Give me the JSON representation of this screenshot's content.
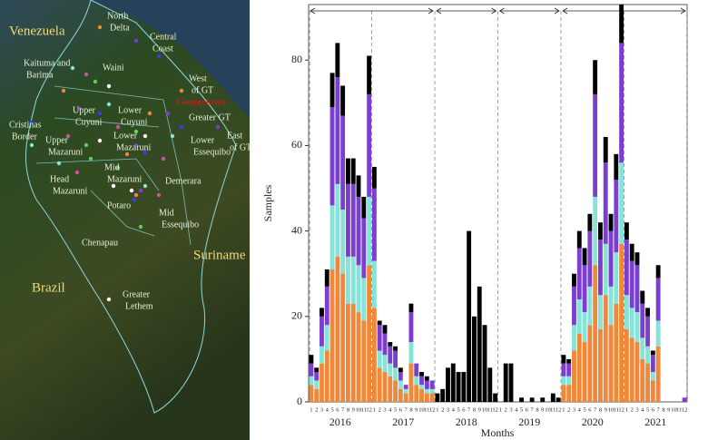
{
  "map": {
    "countries": [
      "Venezuela",
      "Brazil",
      "Suriname"
    ],
    "city": "Georgetown",
    "regions": [
      [
        "North",
        "Delta"
      ],
      [
        "Central",
        "Coast"
      ],
      [
        "Kaituma and",
        "Barima"
      ],
      [
        "Waini"
      ],
      [
        "West",
        "of GT"
      ],
      [
        "Upper",
        "Cuyuni"
      ],
      [
        "Lower",
        "Cuyuni"
      ],
      [
        "Greater GT"
      ],
      [
        "Cristinas",
        "Border"
      ],
      [
        "Upper",
        "Mazaruni"
      ],
      [
        "Lower",
        "Mazaruni"
      ],
      [
        "Lower",
        "Essequibo"
      ],
      [
        "East",
        "of GT"
      ],
      [
        "Mid",
        "Mazaruni"
      ],
      [
        "Demerara"
      ],
      [
        "Head",
        "Mazaruni"
      ],
      [
        "Potaro"
      ],
      [
        "Mid",
        "Essequibo"
      ],
      [
        "Chenapau"
      ],
      [
        "Greater",
        "Lethem"
      ]
    ]
  },
  "chart_data": {
    "type": "stacked_bar",
    "y_label": "Samples",
    "x_label": "Months",
    "years": [
      "2016",
      "2017",
      "2018",
      "2019",
      "2020",
      "2021"
    ],
    "categories": [
      "1",
      "2",
      "3",
      "4",
      "5",
      "6",
      "7",
      "8",
      "9",
      "10",
      "11",
      "12",
      "1",
      "2",
      "3",
      "4",
      "5",
      "6",
      "7",
      "8",
      "9",
      "10",
      "11",
      "12",
      "1",
      "2",
      "3",
      "4",
      "5",
      "6",
      "7",
      "8",
      "9",
      "10",
      "11",
      "12",
      "1",
      "2",
      "3",
      "4",
      "5",
      "6",
      "7",
      "8",
      "9",
      "10",
      "11",
      "12",
      "1",
      "2",
      "3",
      "4",
      "5",
      "6",
      "7",
      "8",
      "9",
      "10",
      "11",
      "12",
      "1",
      "2",
      "3",
      "4",
      "5",
      "6",
      "7",
      "8",
      "9",
      "10",
      "11",
      "12"
    ],
    "ylim": [
      0,
      93
    ],
    "yticks": [
      0,
      20,
      40,
      60,
      80
    ],
    "series": [
      {
        "color": "#f0883a",
        "values": [
          4,
          3,
          9,
          12,
          31,
          34,
          30,
          23,
          23,
          21,
          19,
          32,
          22,
          8,
          7,
          6,
          5,
          3,
          2,
          9,
          4,
          3,
          2,
          2,
          0,
          0,
          0,
          0,
          0,
          0,
          0,
          0,
          0,
          0,
          0,
          0,
          0,
          0,
          0,
          0,
          0,
          0,
          0,
          0,
          0,
          0,
          0,
          0,
          4,
          4,
          12,
          16,
          14,
          18,
          32,
          17,
          25,
          18,
          23,
          37,
          17,
          15,
          14,
          10,
          9,
          5,
          13,
          0,
          0,
          0,
          0,
          0
        ]
      },
      {
        "color": "#86e3d8",
        "values": [
          2,
          2,
          4,
          6,
          15,
          17,
          15,
          11,
          11,
          11,
          10,
          16,
          11,
          4,
          4,
          3,
          3,
          2,
          1,
          5,
          2,
          1,
          1,
          1,
          0,
          0,
          0,
          0,
          0,
          0,
          0,
          0,
          0,
          0,
          0,
          0,
          0,
          0,
          0,
          0,
          0,
          0,
          0,
          0,
          0,
          0,
          0,
          0,
          2,
          2,
          6,
          8,
          7,
          9,
          16,
          8,
          12,
          9,
          12,
          19,
          8,
          7,
          7,
          5,
          4,
          2,
          6,
          0,
          0,
          0,
          0,
          0
        ]
      },
      {
        "color": "#7b3fd0",
        "values": [
          3,
          2,
          7,
          9,
          23,
          25,
          22,
          17,
          17,
          16,
          14,
          24,
          17,
          6,
          5,
          4,
          4,
          2,
          1,
          7,
          3,
          2,
          2,
          2,
          0,
          0,
          0,
          0,
          0,
          0,
          0,
          0,
          0,
          0,
          0,
          0,
          0,
          0,
          0,
          0,
          0,
          0,
          0,
          0,
          0,
          0,
          0,
          0,
          3,
          3,
          9,
          12,
          11,
          13,
          24,
          13,
          19,
          13,
          17,
          28,
          13,
          11,
          11,
          8,
          7,
          4,
          10,
          0,
          0,
          0,
          0,
          1
        ]
      },
      {
        "color": "#000000",
        "values": [
          2,
          1,
          2,
          4,
          8,
          8,
          7,
          6,
          6,
          5,
          5,
          9,
          5,
          1,
          2,
          1,
          1,
          1,
          0,
          2,
          0,
          1,
          1,
          0,
          2,
          3,
          8,
          9,
          7,
          7,
          40,
          20,
          27,
          18,
          8,
          2,
          0,
          9,
          9,
          0,
          1,
          0,
          1,
          0,
          1,
          0,
          2,
          1,
          2,
          1,
          3,
          4,
          4,
          4,
          8,
          4,
          6,
          4,
          6,
          9,
          4,
          4,
          3,
          3,
          2,
          1,
          3,
          0,
          0,
          0,
          0,
          0
        ]
      }
    ]
  }
}
